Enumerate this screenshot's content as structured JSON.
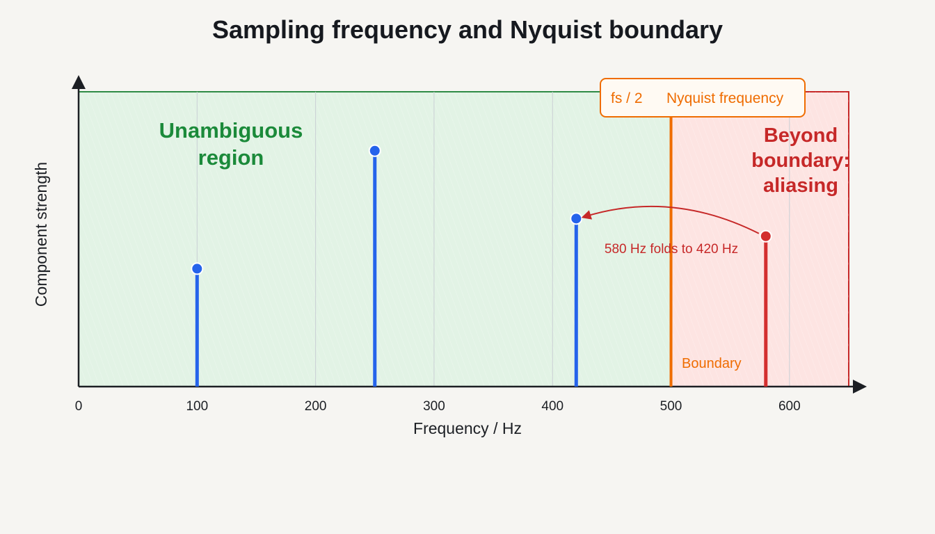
{
  "chart_data": {
    "type": "bar",
    "title": "Sampling frequency and Nyquist boundary",
    "xlabel": "Frequency / Hz",
    "ylabel": "Component strength",
    "xlim": [
      0,
      650
    ],
    "ylim": [
      0,
      1
    ],
    "xticks": [
      0,
      100,
      200,
      300,
      400,
      500,
      600
    ],
    "grid": true,
    "series": [
      {
        "x": 100,
        "y": 0.4,
        "color": "#2563eb"
      },
      {
        "x": 250,
        "y": 0.8,
        "color": "#2563eb"
      },
      {
        "x": 420,
        "y": 0.57,
        "color": "#2563eb"
      },
      {
        "x": 580,
        "y": 0.51,
        "color": "#d32f2f"
      }
    ],
    "nyquist": {
      "x": 500,
      "label_left": "fs / 2",
      "label_right": "Nyquist frequency",
      "boundary_label": "Boundary",
      "color": "#ef6c00"
    },
    "regions": {
      "unambiguous": {
        "label_lines": [
          "Unambiguous",
          "region"
        ],
        "color": "#1b8a3a",
        "fill": "#e2f3e5"
      },
      "aliasing": {
        "label_lines": [
          "Beyond",
          "boundary:",
          "aliasing"
        ],
        "color": "#c62828",
        "fill": "#fde4e2"
      }
    },
    "annotation": {
      "text": "580 Hz folds to 420 Hz",
      "from_x": 580,
      "to_x": 420,
      "color": "#c62828"
    }
  }
}
